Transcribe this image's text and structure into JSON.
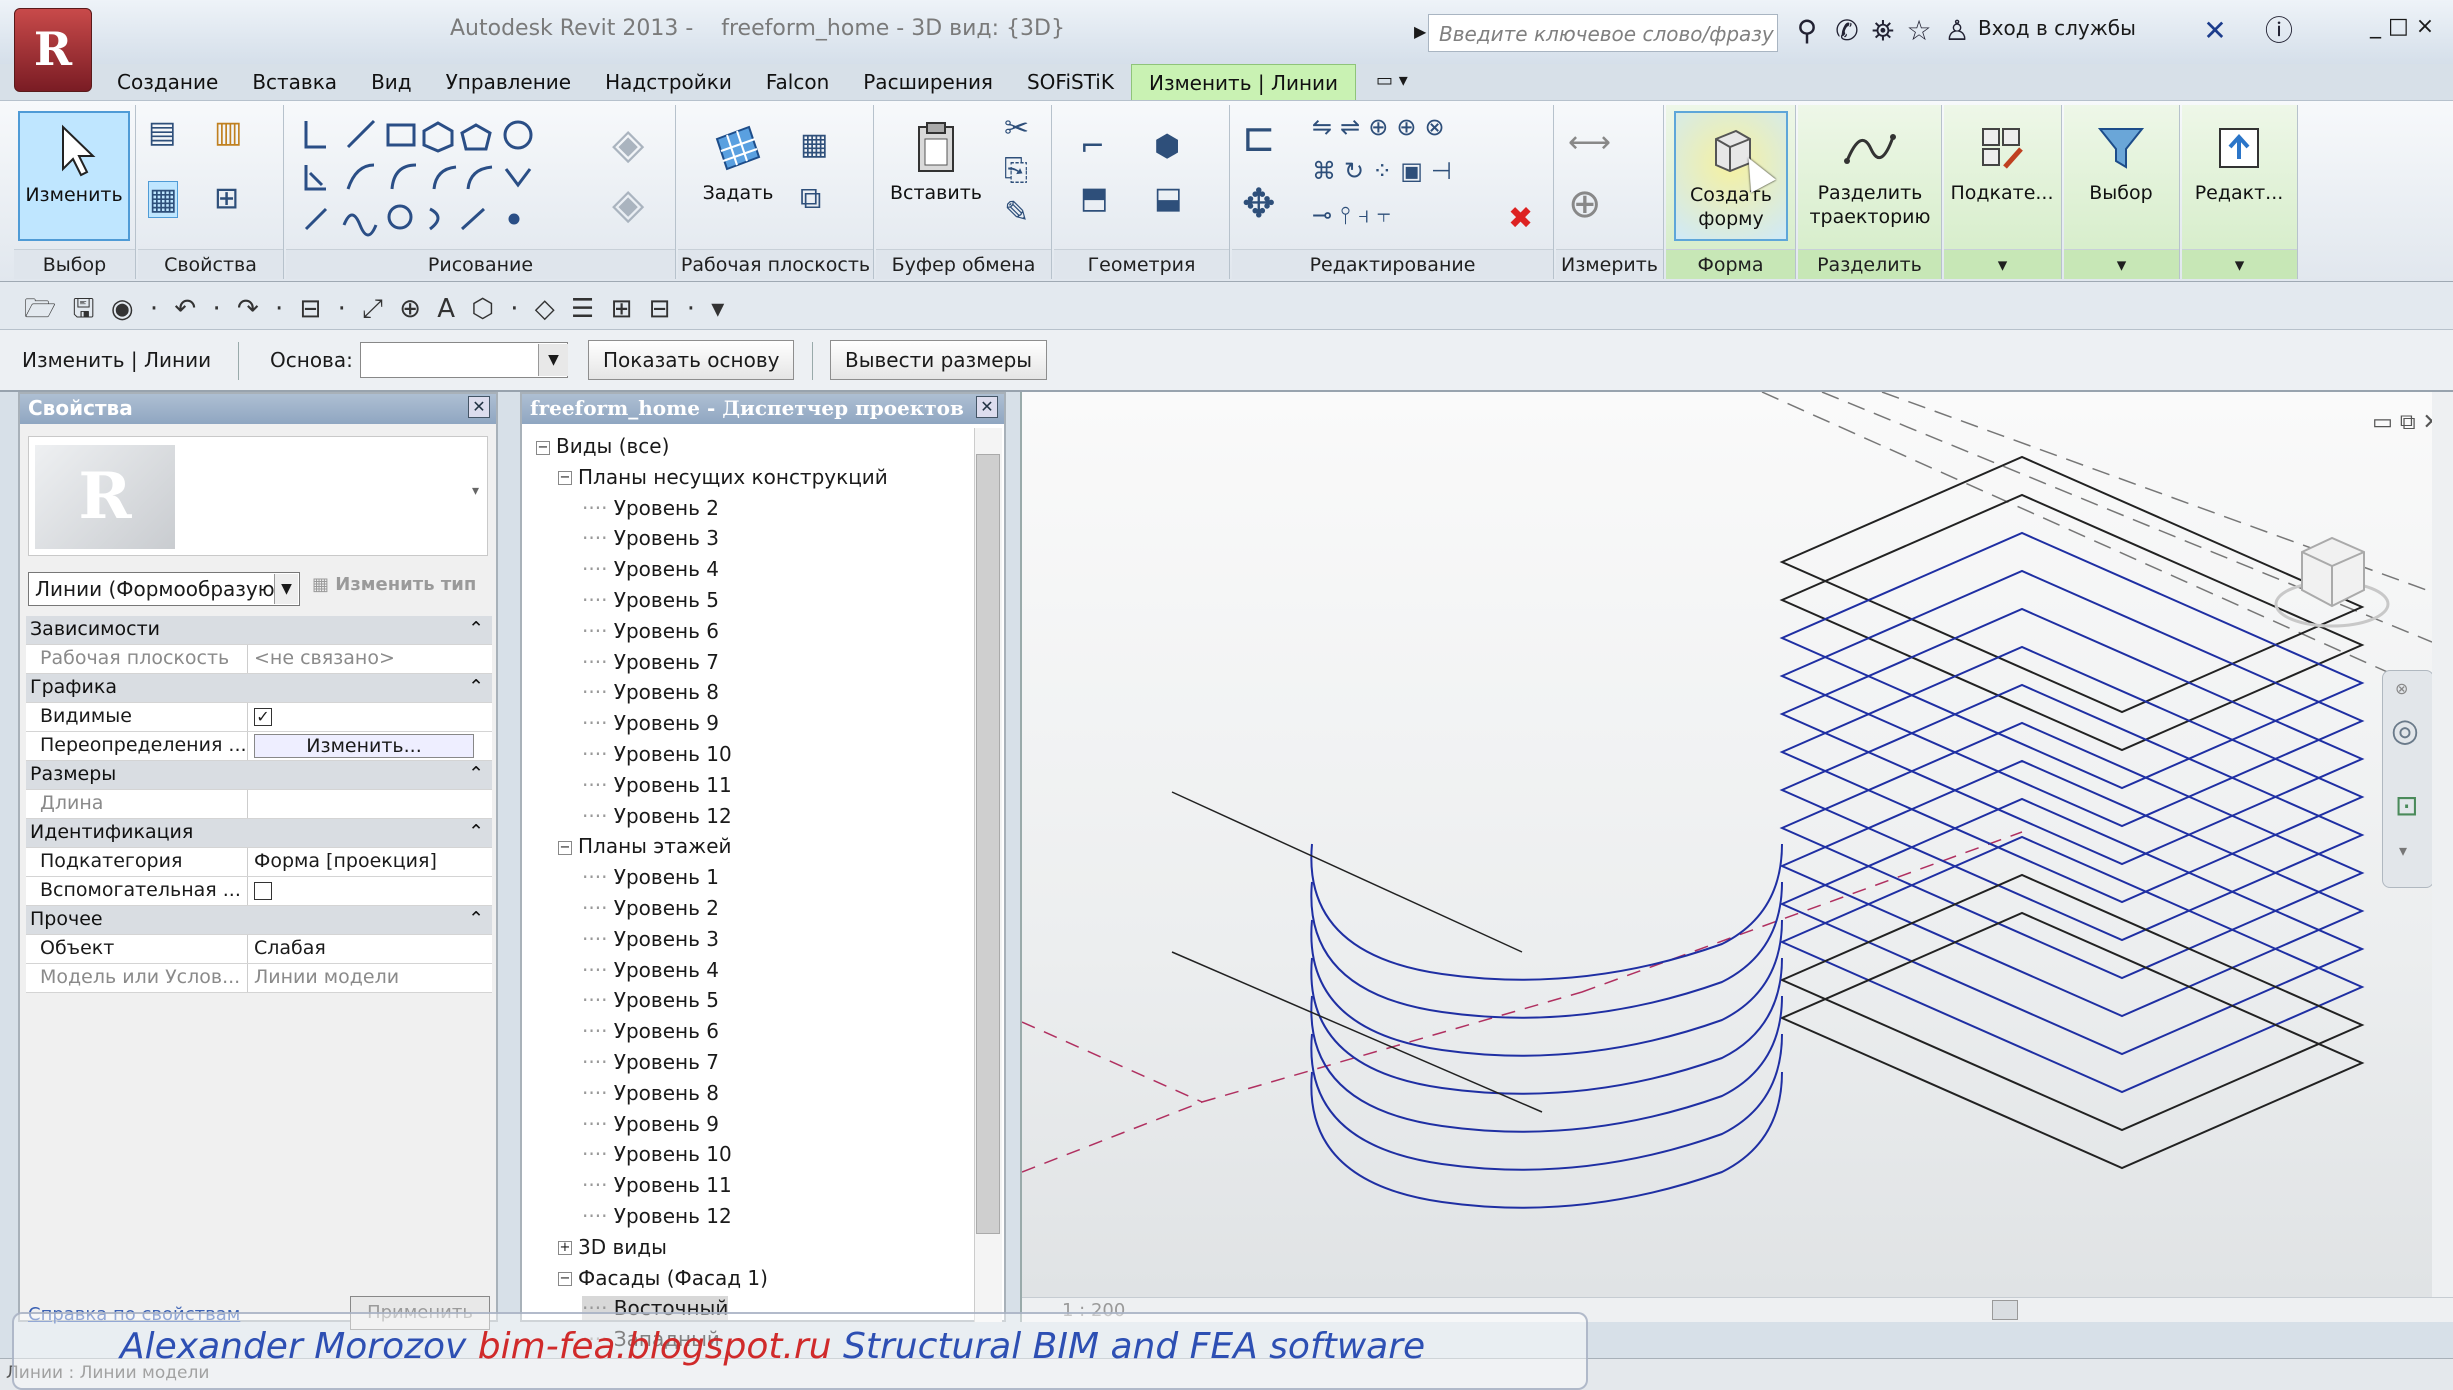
{
  "app": {
    "title": "Autodesk Revit 2013 -    freeform_home - 3D вид: {3D}",
    "logo_letter": "R",
    "search_placeholder": "Введите ключевое слово/фразу",
    "sign_in": "Вход в службы",
    "window_controls": "_ □ ×"
  },
  "tabs": [
    {
      "label": "Создание"
    },
    {
      "label": "Вставка"
    },
    {
      "label": "Вид"
    },
    {
      "label": "Управление"
    },
    {
      "label": "Надстройки"
    },
    {
      "label": "Falcon"
    },
    {
      "label": "Расширения"
    },
    {
      "label": "SOFiSTiK"
    },
    {
      "label": "Изменить | Линии"
    }
  ],
  "tab_extra": "▭ ▾",
  "ribbon": {
    "select_btn": "Изменить",
    "panels": {
      "select": "Выбор",
      "properties": "Свойства",
      "draw": "Рисование",
      "workplane": "Рабочая плоскость",
      "clipboard": "Буфер обмена",
      "geometry": "Геометрия",
      "modify": "Редактирование",
      "measure": "Измерить",
      "form": "Форма",
      "divide": "Разделить"
    },
    "set_btn": "Задать",
    "paste_btn": "Вставить",
    "create_form_btn": "Создать форму",
    "divide_path_btn": "Разделить траекторию",
    "subcat_btn": "Подкате...",
    "filter_btn": "Выбор",
    "edit_btn": "Редакт..."
  },
  "qat": "🗁 🖫 ◉ · ↶ · ↷ · ⊟ · ⤢ ⊕ A  ⬡ · ◇ ☰  ⊞ ⊟ · ▾",
  "options_bar": {
    "context": "Изменить | Линии",
    "base_label": "Основа:",
    "base_value": "",
    "show_base_btn": "Показать основу",
    "dims_btn": "Вывести размеры"
  },
  "properties": {
    "title": "Свойства",
    "type_name": "Линии (Формообразую",
    "edit_type": "Изменить тип",
    "rows": [
      {
        "kind": "cat",
        "name": "Зависимости"
      },
      {
        "kind": "dim",
        "name": "Рабочая плоскость",
        "value": "<не связано>"
      },
      {
        "kind": "cat",
        "name": "Графика"
      },
      {
        "kind": "row",
        "name": "Видимые",
        "value": "✓"
      },
      {
        "kind": "row",
        "name": "Переопределения ...",
        "value": "Изменить..."
      },
      {
        "kind": "cat",
        "name": "Размеры"
      },
      {
        "kind": "dim",
        "name": "Длина",
        "value": ""
      },
      {
        "kind": "cat",
        "name": "Идентификация"
      },
      {
        "kind": "row",
        "name": "Подкатегория",
        "value": "Форма [проекция]"
      },
      {
        "kind": "row",
        "name": "Вспомогательная ...",
        "value": ""
      },
      {
        "kind": "cat",
        "name": "Прочее"
      },
      {
        "kind": "row",
        "name": "Объект",
        "value": "Слабая"
      },
      {
        "kind": "dim",
        "name": "Модель или Услов...",
        "value": "Линии модели"
      }
    ],
    "help_link": "Справка по свойствам",
    "apply_btn": "Применить"
  },
  "browser": {
    "title": "freeform_home - Диспетчер проектов",
    "root": "Виды (все)",
    "structural_plans": "Планы несущих конструкций",
    "structural_levels": [
      "Уровень 2",
      "Уровень 3",
      "Уровень 4",
      "Уровень 5",
      "Уровень 6",
      "Уровень 7",
      "Уровень 8",
      "Уровень 9",
      "Уровень 10",
      "Уровень 11",
      "Уровень 12"
    ],
    "floor_plans": "Планы этажей",
    "floor_levels": [
      "Уровень 1",
      "Уровень 2",
      "Уровень 3",
      "Уровень 4",
      "Уровень 5",
      "Уровень 6",
      "Уровень 7",
      "Уровень 8",
      "Уровень 9",
      "Уровень 10",
      "Уровень 11",
      "Уровень 12"
    ],
    "views_3d": "3D виды",
    "elevations": "Фасады (Фасад 1)",
    "elev_east": "Восточный",
    "elev_west": "Западный"
  },
  "viewport": {
    "scale": "1 : 200",
    "view_controls": "▭ ⧉ ✕"
  },
  "status": "Линии : Линии модели",
  "watermark": {
    "name": "Alexander Morozov",
    "url": "bim-fea.blogspot.ru",
    "tail": "Structural BIM and FEA software"
  },
  "colors": {
    "accent_tab": "#c9f2b3",
    "level_lines": "#1f2fa3",
    "reference": "#222222",
    "hidden_axis": "#b03060"
  }
}
